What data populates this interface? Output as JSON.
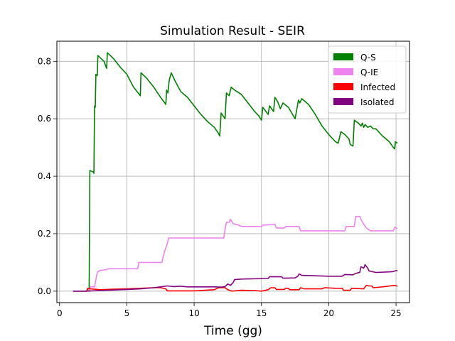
{
  "chart_data": {
    "type": "line",
    "title": "Simulation Result - SEIR",
    "xlabel": "Time (gg)",
    "ylabel": "",
    "xlim": [
      -0.2,
      26.0
    ],
    "ylim": [
      -0.04,
      0.87
    ],
    "xticks": [
      0,
      5,
      10,
      15,
      20,
      25
    ],
    "xtick_labels": [
      "0",
      "5",
      "10",
      "15",
      "20",
      "25"
    ],
    "yticks": [
      0.0,
      0.2,
      0.4,
      0.6,
      0.8
    ],
    "ytick_labels": [
      "0.0",
      "0.2",
      "0.4",
      "0.6",
      "0.8"
    ],
    "grid": true,
    "legend_position": "top-right",
    "series": [
      {
        "name": "Q-S",
        "color": "#008000",
        "points": [
          [
            1.0,
            0.0
          ],
          [
            2.0,
            0.0
          ],
          [
            2.15,
            0.01
          ],
          [
            2.2,
            0.0
          ],
          [
            2.25,
            0.42
          ],
          [
            2.5,
            0.415
          ],
          [
            2.55,
            0.41
          ],
          [
            2.6,
            0.645
          ],
          [
            2.65,
            0.64
          ],
          [
            2.7,
            0.755
          ],
          [
            2.8,
            0.75
          ],
          [
            2.85,
            0.82
          ],
          [
            3.3,
            0.8
          ],
          [
            3.5,
            0.775
          ],
          [
            3.55,
            0.83
          ],
          [
            4.0,
            0.81
          ],
          [
            4.5,
            0.78
          ],
          [
            5.0,
            0.755
          ],
          [
            5.5,
            0.71
          ],
          [
            6.0,
            0.68
          ],
          [
            6.05,
            0.76
          ],
          [
            6.5,
            0.74
          ],
          [
            7.0,
            0.71
          ],
          [
            7.5,
            0.675
          ],
          [
            7.9,
            0.65
          ],
          [
            7.95,
            0.7
          ],
          [
            8.05,
            0.69
          ],
          [
            8.15,
            0.735
          ],
          [
            8.3,
            0.76
          ],
          [
            8.6,
            0.73
          ],
          [
            9.0,
            0.695
          ],
          [
            9.5,
            0.675
          ],
          [
            10.0,
            0.645
          ],
          [
            10.5,
            0.615
          ],
          [
            11.0,
            0.59
          ],
          [
            11.5,
            0.57
          ],
          [
            11.8,
            0.55
          ],
          [
            11.9,
            0.54
          ],
          [
            12.0,
            0.62
          ],
          [
            12.3,
            0.6
          ],
          [
            12.4,
            0.69
          ],
          [
            12.6,
            0.68
          ],
          [
            12.75,
            0.71
          ],
          [
            13.0,
            0.7
          ],
          [
            13.5,
            0.685
          ],
          [
            14.0,
            0.655
          ],
          [
            14.5,
            0.625
          ],
          [
            14.8,
            0.61
          ],
          [
            15.0,
            0.595
          ],
          [
            15.1,
            0.64
          ],
          [
            15.5,
            0.615
          ],
          [
            15.6,
            0.645
          ],
          [
            15.9,
            0.625
          ],
          [
            16.0,
            0.675
          ],
          [
            16.2,
            0.66
          ],
          [
            16.4,
            0.635
          ],
          [
            16.6,
            0.655
          ],
          [
            17.0,
            0.64
          ],
          [
            17.5,
            0.6
          ],
          [
            17.75,
            0.665
          ],
          [
            17.85,
            0.655
          ],
          [
            18.0,
            0.67
          ],
          [
            18.5,
            0.65
          ],
          [
            19.0,
            0.615
          ],
          [
            19.5,
            0.575
          ],
          [
            20.0,
            0.545
          ],
          [
            20.5,
            0.52
          ],
          [
            20.7,
            0.515
          ],
          [
            20.9,
            0.555
          ],
          [
            21.2,
            0.545
          ],
          [
            21.5,
            0.53
          ],
          [
            21.6,
            0.51
          ],
          [
            21.8,
            0.505
          ],
          [
            21.9,
            0.595
          ],
          [
            22.2,
            0.585
          ],
          [
            22.4,
            0.575
          ],
          [
            22.5,
            0.585
          ],
          [
            22.6,
            0.57
          ],
          [
            22.7,
            0.58
          ],
          [
            22.9,
            0.57
          ],
          [
            23.1,
            0.575
          ],
          [
            23.3,
            0.565
          ],
          [
            23.5,
            0.565
          ],
          [
            24.0,
            0.54
          ],
          [
            24.5,
            0.52
          ],
          [
            24.8,
            0.5
          ],
          [
            24.9,
            0.495
          ],
          [
            24.95,
            0.52
          ],
          [
            25.1,
            0.515
          ]
        ]
      },
      {
        "name": "Q-IE",
        "color": "#ee82ee",
        "points": [
          [
            1.0,
            0.0
          ],
          [
            2.1,
            0.0
          ],
          [
            2.3,
            0.015
          ],
          [
            2.6,
            0.015
          ],
          [
            2.7,
            0.04
          ],
          [
            2.8,
            0.065
          ],
          [
            3.0,
            0.072
          ],
          [
            3.5,
            0.075
          ],
          [
            3.6,
            0.078
          ],
          [
            5.8,
            0.078
          ],
          [
            5.9,
            0.1
          ],
          [
            7.6,
            0.1
          ],
          [
            7.75,
            0.13
          ],
          [
            8.0,
            0.165
          ],
          [
            8.1,
            0.185
          ],
          [
            12.2,
            0.185
          ],
          [
            12.3,
            0.215
          ],
          [
            12.4,
            0.24
          ],
          [
            12.6,
            0.24
          ],
          [
            12.7,
            0.25
          ],
          [
            12.9,
            0.235
          ],
          [
            13.3,
            0.23
          ],
          [
            13.5,
            0.225
          ],
          [
            15.0,
            0.225
          ],
          [
            15.1,
            0.23
          ],
          [
            16.0,
            0.232
          ],
          [
            16.1,
            0.22
          ],
          [
            16.7,
            0.22
          ],
          [
            16.8,
            0.225
          ],
          [
            17.8,
            0.225
          ],
          [
            17.9,
            0.21
          ],
          [
            21.2,
            0.21
          ],
          [
            21.3,
            0.225
          ],
          [
            21.9,
            0.225
          ],
          [
            22.0,
            0.26
          ],
          [
            22.3,
            0.26
          ],
          [
            22.5,
            0.24
          ],
          [
            22.8,
            0.22
          ],
          [
            23.1,
            0.21
          ],
          [
            24.8,
            0.21
          ],
          [
            24.9,
            0.222
          ],
          [
            25.1,
            0.218
          ]
        ]
      },
      {
        "name": "Infected",
        "color": "#ff0000",
        "points": [
          [
            1.0,
            0.0
          ],
          [
            2.0,
            0.0
          ],
          [
            2.1,
            0.01
          ],
          [
            2.3,
            0.008
          ],
          [
            3.0,
            0.005
          ],
          [
            4.0,
            0.007
          ],
          [
            5.0,
            0.008
          ],
          [
            6.0,
            0.01
          ],
          [
            7.0,
            0.012
          ],
          [
            7.5,
            0.012
          ],
          [
            7.9,
            0.008
          ],
          [
            8.0,
            0.001
          ],
          [
            10.0,
            0.001
          ],
          [
            11.5,
            0.005
          ],
          [
            11.8,
            0.012
          ],
          [
            12.3,
            0.012
          ],
          [
            12.5,
            0.005
          ],
          [
            12.8,
            0.0
          ],
          [
            13.5,
            0.003
          ],
          [
            14.5,
            0.002
          ],
          [
            15.0,
            0.0
          ],
          [
            15.5,
            0.005
          ],
          [
            15.7,
            0.012
          ],
          [
            16.0,
            0.012
          ],
          [
            16.1,
            0.006
          ],
          [
            16.7,
            0.006
          ],
          [
            16.8,
            0.01
          ],
          [
            17.0,
            0.01
          ],
          [
            17.1,
            0.005
          ],
          [
            17.8,
            0.005
          ],
          [
            17.9,
            0.012
          ],
          [
            18.2,
            0.008
          ],
          [
            19.5,
            0.008
          ],
          [
            19.7,
            0.012
          ],
          [
            20.5,
            0.01
          ],
          [
            21.0,
            0.01
          ],
          [
            21.1,
            0.003
          ],
          [
            21.6,
            0.003
          ],
          [
            21.7,
            0.01
          ],
          [
            22.6,
            0.008
          ],
          [
            22.7,
            0.015
          ],
          [
            22.8,
            0.02
          ],
          [
            23.0,
            0.018
          ],
          [
            23.2,
            0.018
          ],
          [
            23.3,
            0.012
          ],
          [
            24.0,
            0.015
          ],
          [
            24.9,
            0.02
          ],
          [
            25.1,
            0.017
          ]
        ]
      },
      {
        "name": "Isolated",
        "color": "#800080",
        "points": [
          [
            1.0,
            0.0
          ],
          [
            2.0,
            0.0
          ],
          [
            3.0,
            0.002
          ],
          [
            4.0,
            0.004
          ],
          [
            5.0,
            0.006
          ],
          [
            6.0,
            0.008
          ],
          [
            7.0,
            0.012
          ],
          [
            7.5,
            0.015
          ],
          [
            8.0,
            0.018
          ],
          [
            8.5,
            0.016
          ],
          [
            9.0,
            0.017
          ],
          [
            9.5,
            0.015
          ],
          [
            10.5,
            0.015
          ],
          [
            11.5,
            0.015
          ],
          [
            12.0,
            0.014
          ],
          [
            12.3,
            0.016
          ],
          [
            12.5,
            0.025
          ],
          [
            12.7,
            0.02
          ],
          [
            12.9,
            0.03
          ],
          [
            13.0,
            0.04
          ],
          [
            13.5,
            0.042
          ],
          [
            15.5,
            0.044
          ],
          [
            15.6,
            0.05
          ],
          [
            16.5,
            0.05
          ],
          [
            16.6,
            0.045
          ],
          [
            17.5,
            0.046
          ],
          [
            17.7,
            0.052
          ],
          [
            17.8,
            0.06
          ],
          [
            18.0,
            0.055
          ],
          [
            20.0,
            0.052
          ],
          [
            21.0,
            0.052
          ],
          [
            21.2,
            0.058
          ],
          [
            21.8,
            0.057
          ],
          [
            22.0,
            0.062
          ],
          [
            22.3,
            0.065
          ],
          [
            22.4,
            0.085
          ],
          [
            22.6,
            0.08
          ],
          [
            22.7,
            0.092
          ],
          [
            22.9,
            0.08
          ],
          [
            23.0,
            0.07
          ],
          [
            23.5,
            0.065
          ],
          [
            24.5,
            0.067
          ],
          [
            24.8,
            0.068
          ],
          [
            25.0,
            0.072
          ],
          [
            25.1,
            0.07
          ]
        ]
      }
    ]
  }
}
